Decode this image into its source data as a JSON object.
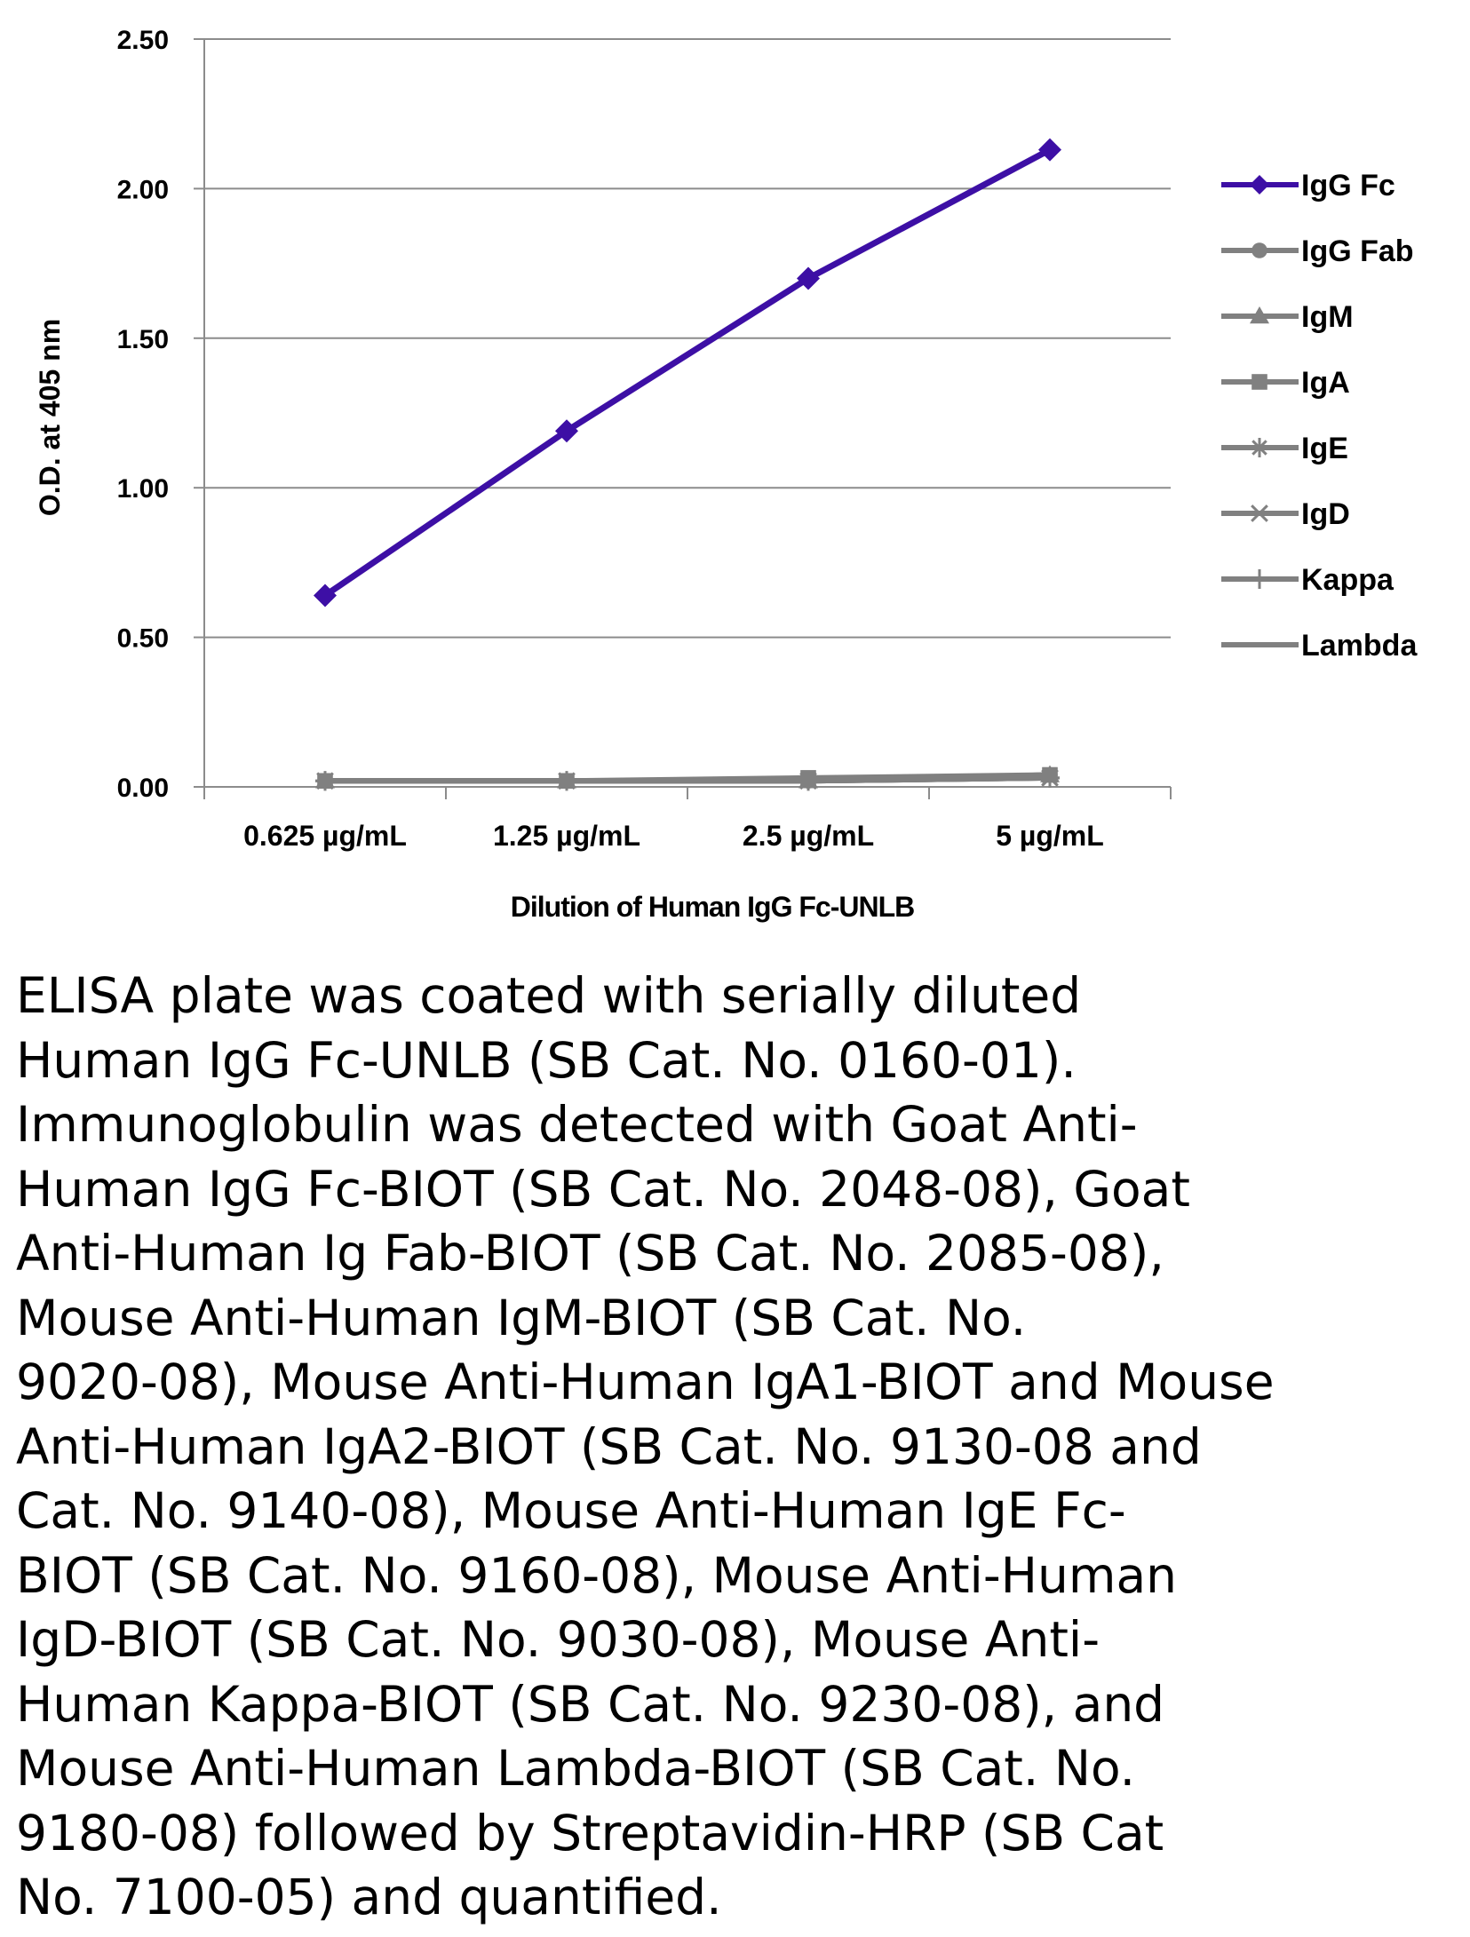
{
  "chart_data": {
    "type": "line",
    "ylabel": "O.D. at 405 nm",
    "xlabel": "Dilution of Human IgG Fc-UNLB",
    "ylim": [
      0,
      2.5
    ],
    "yticks": [
      "0.00",
      "0.50",
      "1.00",
      "1.50",
      "2.00",
      "2.50"
    ],
    "categories": [
      "0.625 µg/mL",
      "1.25 µg/mL",
      "2.5 µg/mL",
      "5 µg/mL"
    ],
    "grid": true,
    "legend_position": "right",
    "series": [
      {
        "name": "IgG Fc",
        "values": [
          0.64,
          1.19,
          1.7,
          2.13
        ],
        "color": "#3d0fa5",
        "marker": "diamond"
      },
      {
        "name": "IgG Fab",
        "values": [
          0.02,
          0.02,
          0.02,
          0.04
        ],
        "color": "#808080",
        "marker": "circle"
      },
      {
        "name": "IgM",
        "values": [
          0.02,
          0.02,
          0.02,
          0.04
        ],
        "color": "#808080",
        "marker": "triangle"
      },
      {
        "name": "IgA",
        "values": [
          0.02,
          0.02,
          0.03,
          0.04
        ],
        "color": "#808080",
        "marker": "square"
      },
      {
        "name": "IgE",
        "values": [
          0.02,
          0.02,
          0.02,
          0.03
        ],
        "color": "#808080",
        "marker": "star"
      },
      {
        "name": "IgD",
        "values": [
          0.02,
          0.02,
          0.02,
          0.03
        ],
        "color": "#808080",
        "marker": "x"
      },
      {
        "name": "Kappa",
        "values": [
          0.02,
          0.02,
          0.02,
          0.03
        ],
        "color": "#808080",
        "marker": "plus"
      },
      {
        "name": "Lambda",
        "values": [
          0.02,
          0.02,
          0.02,
          0.03
        ],
        "color": "#808080",
        "marker": "none"
      }
    ]
  },
  "caption_lines": [
    "ELISA plate was coated with serially diluted",
    "Human IgG Fc-UNLB (SB Cat. No. 0160-01).",
    "Immunoglobulin was detected with Goat Anti-",
    "Human IgG Fc-BIOT (SB Cat. No. 2048-08), Goat",
    "Anti-Human Ig Fab-BIOT (SB Cat. No. 2085-08),",
    "Mouse Anti-Human IgM-BIOT (SB Cat. No.",
    "9020-08), Mouse Anti-Human IgA1-BIOT and Mouse",
    "Anti-Human IgA2-BIOT (SB Cat. No. 9130-08 and",
    "Cat. No. 9140-08), Mouse Anti-Human IgE Fc-",
    "BIOT (SB Cat. No. 9160-08), Mouse Anti-Human",
    "IgD-BIOT (SB Cat. No. 9030-08), Mouse Anti-",
    "Human Kappa-BIOT (SB Cat. No. 9230-08), and",
    "Mouse Anti-Human Lambda-BIOT (SB Cat. No.",
    "9180-08) followed by Streptavidin-HRP (SB Cat",
    "No. 7100-05) and quantified."
  ]
}
